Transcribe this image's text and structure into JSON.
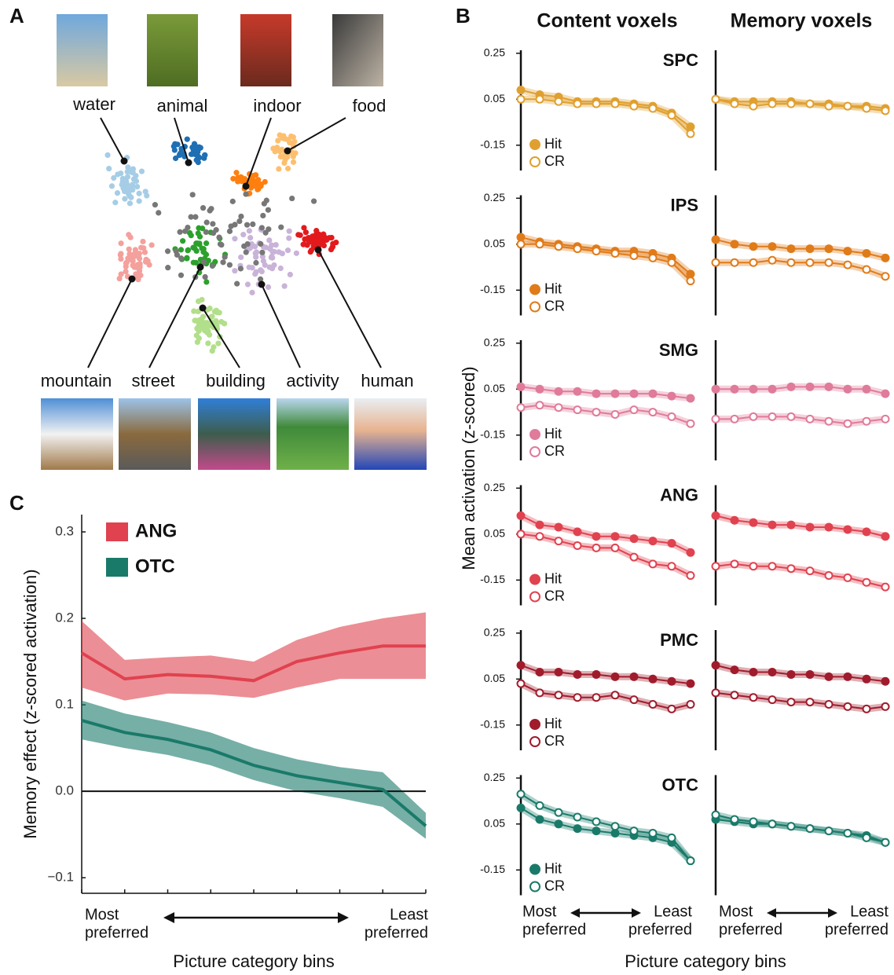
{
  "panel_labels": [
    "A",
    "B",
    "C"
  ],
  "panel_a": {
    "categories": [
      "water",
      "animal",
      "indoor",
      "food",
      "mountain",
      "street",
      "building",
      "activity",
      "human"
    ]
  },
  "panel_b": {
    "column_titles": [
      "Content voxels",
      "Memory voxels"
    ],
    "ylabel": "Mean activation (z-scored)",
    "xlabel": "Picture category bins",
    "x_end_labels": [
      [
        "Most",
        "preferred"
      ],
      [
        "Least",
        "preferred"
      ]
    ]
  },
  "panel_c": {
    "ylabel": "Memory effect (z-scored activation)",
    "xlabel": "Picture category bins",
    "x_end_labels": [
      [
        "Most",
        "preferred"
      ],
      [
        "Least",
        "preferred"
      ]
    ]
  },
  "chart_data": [
    {
      "type": "band_line",
      "categories": [
        null,
        null,
        null,
        null,
        null,
        null,
        null,
        null,
        null
      ],
      "ylim": [
        -0.118,
        0.32
      ],
      "yticks": [
        {
          "value": -0.1,
          "label": "−0.1"
        },
        {
          "value": 0,
          "label": "0.0"
        },
        0.1,
        0.2,
        0.3
      ],
      "legend": "upper left",
      "series": [
        {
          "name": "ANG",
          "color": "#e0424f",
          "values": [
            0.16,
            0.13,
            0.135,
            0.133,
            0.128,
            0.15,
            0.16,
            0.168,
            0.168
          ],
          "lower": [
            0.12,
            0.105,
            0.113,
            0.112,
            0.108,
            0.12,
            0.13,
            0.13,
            0.13
          ],
          "upper": [
            0.197,
            0.152,
            0.155,
            0.157,
            0.15,
            0.175,
            0.19,
            0.2,
            0.207
          ]
        },
        {
          "name": "OTC",
          "color": "#1a7a6a",
          "values": [
            0.082,
            0.068,
            0.06,
            0.048,
            0.03,
            0.018,
            0.01,
            0.002,
            -0.04
          ],
          "lower": [
            0.06,
            0.05,
            0.042,
            0.03,
            0.013,
            0.0,
            -0.008,
            -0.018,
            -0.055
          ],
          "upper": [
            0.105,
            0.09,
            0.08,
            0.068,
            0.05,
            0.037,
            0.028,
            0.022,
            -0.025
          ]
        }
      ]
    },
    {
      "type": "line",
      "title": "SPC",
      "color": "#e0a030",
      "ylim": [
        -0.26,
        0.263
      ],
      "yticks": [
        0.25,
        0.05,
        -0.15
      ],
      "series": [
        {
          "name": "Hit",
          "values": [
            0.09,
            0.07,
            0.06,
            0.04,
            0.04,
            0.04,
            0.03,
            0.02,
            -0.01,
            -0.07
          ]
        },
        {
          "name": "CR",
          "values": [
            0.05,
            0.05,
            0.04,
            0.03,
            0.03,
            0.03,
            0.02,
            0.01,
            -0.02,
            -0.1
          ]
        }
      ]
    },
    {
      "type": "line",
      "color": "#e0a030",
      "ylim": [
        -0.26,
        0.263
      ],
      "series": [
        {
          "values": [
            0.05,
            0.04,
            0.04,
            0.04,
            0.04,
            0.03,
            0.03,
            0.02,
            0.02,
            0.01
          ]
        },
        {
          "values": [
            0.05,
            0.03,
            0.02,
            0.03,
            0.03,
            0.03,
            0.02,
            0.02,
            0.01,
            0.0
          ]
        }
      ]
    },
    {
      "type": "line",
      "title": "IPS",
      "color": "#e07b1a",
      "ylim": [
        -0.26,
        0.263
      ],
      "yticks": [
        0.25,
        0.05,
        -0.15
      ],
      "series": [
        {
          "name": "Hit",
          "values": [
            0.08,
            0.06,
            0.05,
            0.04,
            0.03,
            0.02,
            0.02,
            0.01,
            -0.01,
            -0.08
          ]
        },
        {
          "name": "CR",
          "values": [
            0.05,
            0.05,
            0.04,
            0.03,
            0.02,
            0.01,
            0.0,
            -0.01,
            -0.03,
            -0.11
          ]
        }
      ]
    },
    {
      "type": "line",
      "color": "#e07b1a",
      "ylim": [
        -0.26,
        0.263
      ],
      "series": [
        {
          "values": [
            0.07,
            0.05,
            0.04,
            0.04,
            0.03,
            0.03,
            0.03,
            0.02,
            0.01,
            -0.01
          ]
        },
        {
          "values": [
            -0.03,
            -0.03,
            -0.03,
            -0.02,
            -0.03,
            -0.03,
            -0.03,
            -0.04,
            -0.06,
            -0.09
          ]
        }
      ]
    },
    {
      "type": "line",
      "title": "SMG",
      "color": "#e07b9a",
      "ylim": [
        -0.26,
        0.263
      ],
      "yticks": [
        0.25,
        0.05,
        -0.15
      ],
      "series": [
        {
          "name": "Hit",
          "values": [
            0.06,
            0.05,
            0.04,
            0.04,
            0.03,
            0.03,
            0.03,
            0.03,
            0.02,
            0.01
          ]
        },
        {
          "name": "CR",
          "values": [
            -0.03,
            -0.02,
            -0.03,
            -0.04,
            -0.05,
            -0.06,
            -0.04,
            -0.05,
            -0.07,
            -0.1
          ]
        }
      ]
    },
    {
      "type": "line",
      "color": "#e07b9a",
      "ylim": [
        -0.26,
        0.263
      ],
      "series": [
        {
          "values": [
            0.05,
            0.05,
            0.05,
            0.05,
            0.06,
            0.06,
            0.06,
            0.05,
            0.05,
            0.03
          ]
        },
        {
          "values": [
            -0.08,
            -0.08,
            -0.07,
            -0.07,
            -0.07,
            -0.08,
            -0.09,
            -0.1,
            -0.09,
            -0.08
          ]
        }
      ]
    },
    {
      "type": "line",
      "title": "ANG",
      "color": "#e0424f",
      "ylim": [
        -0.26,
        0.263
      ],
      "yticks": [
        0.25,
        0.05,
        -0.15
      ],
      "series": [
        {
          "name": "Hit",
          "values": [
            0.13,
            0.09,
            0.08,
            0.06,
            0.04,
            0.04,
            0.03,
            0.02,
            0.01,
            -0.03
          ]
        },
        {
          "name": "CR",
          "values": [
            0.05,
            0.04,
            0.02,
            0.0,
            -0.01,
            -0.01,
            -0.05,
            -0.08,
            -0.09,
            -0.13
          ]
        }
      ]
    },
    {
      "type": "line",
      "color": "#e0424f",
      "ylim": [
        -0.26,
        0.263
      ],
      "series": [
        {
          "values": [
            0.13,
            0.11,
            0.1,
            0.09,
            0.09,
            0.08,
            0.08,
            0.07,
            0.06,
            0.04
          ]
        },
        {
          "values": [
            -0.09,
            -0.08,
            -0.09,
            -0.09,
            -0.1,
            -0.11,
            -0.13,
            -0.14,
            -0.16,
            -0.18
          ]
        }
      ]
    },
    {
      "type": "line",
      "title": "PMC",
      "color": "#a01c2c",
      "ylim": [
        -0.26,
        0.263
      ],
      "yticks": [
        0.25,
        0.05,
        -0.15
      ],
      "series": [
        {
          "name": "Hit",
          "values": [
            0.11,
            0.08,
            0.08,
            0.07,
            0.07,
            0.06,
            0.06,
            0.05,
            0.04,
            0.03
          ]
        },
        {
          "name": "CR",
          "values": [
            0.03,
            -0.01,
            -0.02,
            -0.03,
            -0.03,
            -0.02,
            -0.04,
            -0.06,
            -0.08,
            -0.06
          ]
        }
      ]
    },
    {
      "type": "line",
      "color": "#a01c2c",
      "ylim": [
        -0.26,
        0.263
      ],
      "series": [
        {
          "values": [
            0.11,
            0.09,
            0.08,
            0.08,
            0.07,
            0.07,
            0.06,
            0.06,
            0.05,
            0.04
          ]
        },
        {
          "values": [
            -0.01,
            -0.02,
            -0.03,
            -0.04,
            -0.05,
            -0.05,
            -0.06,
            -0.07,
            -0.08,
            -0.07
          ]
        }
      ]
    },
    {
      "type": "line",
      "title": "OTC",
      "color": "#1a7a6a",
      "ylim": [
        -0.26,
        0.263
      ],
      "yticks": [
        0.25,
        0.05,
        -0.15
      ],
      "series": [
        {
          "name": "Hit",
          "values": [
            0.12,
            0.07,
            0.05,
            0.03,
            0.02,
            0.01,
            0.0,
            -0.01,
            -0.03,
            -0.11
          ]
        },
        {
          "name": "CR",
          "values": [
            0.18,
            0.13,
            0.1,
            0.08,
            0.06,
            0.04,
            0.02,
            0.01,
            -0.01,
            -0.11
          ]
        }
      ]
    },
    {
      "type": "line",
      "color": "#1a7a6a",
      "ylim": [
        -0.26,
        0.263
      ],
      "series": [
        {
          "values": [
            0.07,
            0.06,
            0.05,
            0.05,
            0.04,
            0.03,
            0.02,
            0.01,
            0.0,
            -0.03
          ]
        },
        {
          "values": [
            0.09,
            0.07,
            0.06,
            0.05,
            0.04,
            0.03,
            0.02,
            0.01,
            -0.01,
            -0.03
          ]
        }
      ]
    }
  ]
}
